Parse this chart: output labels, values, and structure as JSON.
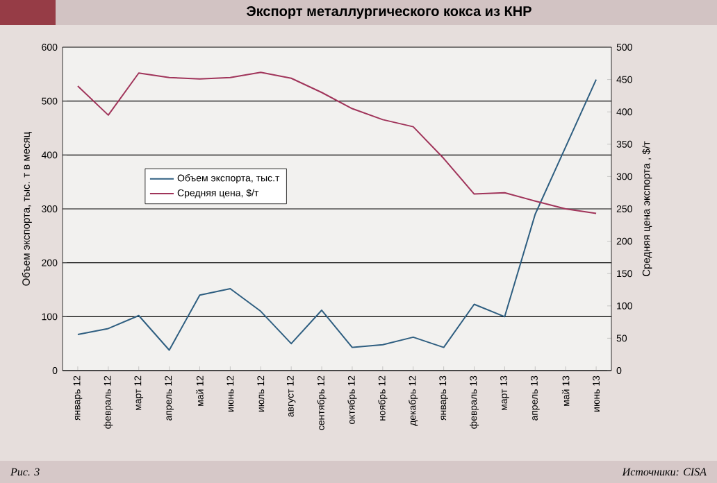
{
  "chart_data": {
    "type": "line",
    "title": "Экспорт металлургического кокса из КНР",
    "ylabel": "Объем экспорта, тыс. т в месяц",
    "y2label": "Средняя цена экспорта , $/т",
    "categories": [
      "январь 12",
      "февраль 12",
      "март 12",
      "апрель 12",
      "май 12",
      "июнь 12",
      "июль 12",
      "август 12",
      "сентябрь 12",
      "октябрь 12",
      "ноябрь 12",
      "декабрь 12",
      "январь 13",
      "февраль 13",
      "март 13",
      "апрель 13",
      "май 13",
      "июнь 13"
    ],
    "series": [
      {
        "name": "Объем экспорта, тыс.т",
        "color": "#2e5e80",
        "values": [
          67,
          78,
          102,
          38,
          140,
          152,
          110,
          50,
          112,
          43,
          48,
          62,
          43,
          123,
          100,
          290,
          415,
          540
        ]
      },
      {
        "name": "Средняя цена, $/т",
        "color": "#a0345a",
        "axis": "y2",
        "values": [
          440,
          395,
          460,
          453,
          451,
          453,
          461,
          452,
          430,
          405,
          388,
          377,
          328,
          273,
          275,
          262,
          250,
          243
        ]
      }
    ],
    "ylim": [
      0,
      600
    ],
    "yticks": [
      0,
      100,
      200,
      300,
      400,
      500,
      600
    ],
    "y2lim": [
      0,
      500
    ],
    "y2ticks": [
      0,
      50,
      100,
      150,
      200,
      250,
      300,
      350,
      400,
      450,
      500
    ],
    "grid": "y",
    "legend": "left",
    "marker": "none",
    "line_style": "solid",
    "annotations": [
      "Рис. 3",
      "Источники: CISA"
    ]
  }
}
